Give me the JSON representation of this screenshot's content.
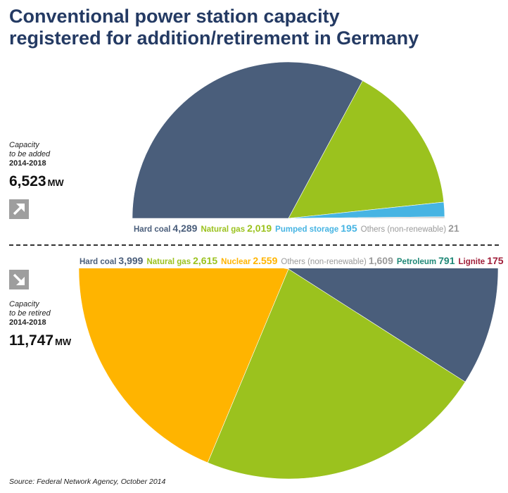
{
  "title_line1": "Conventional power station capacity",
  "title_line2": "registered for addition/retirement in Germany",
  "added": {
    "label1": "Capacity",
    "label2": "to be added",
    "period": "2014-2018",
    "total": "6,523",
    "unit": "MW"
  },
  "retired": {
    "label1": "Capacity",
    "label2": "to be retired",
    "period": "2014-2018",
    "total": "11,747",
    "unit": "MW"
  },
  "source": "Source: Federal Network Agency, October 2014",
  "colors": {
    "hard_coal": "#4a5e7b",
    "natural_gas": "#9bc21e",
    "pumped_storage": "#46b4e3",
    "others": "#cfd1d1",
    "nuclear": "#ffb400",
    "petroleum": "#1f8877",
    "lignite": "#a01e39",
    "title": "#243a63"
  },
  "chart_data": [
    {
      "type": "pie",
      "title": "Capacity to be added 2014-2018",
      "unit": "MW",
      "slices": [
        {
          "key": "hard_coal",
          "label": "Hard coal",
          "value": 4289,
          "display": "4,289"
        },
        {
          "key": "natural_gas",
          "label": "Natural gas",
          "value": 2019,
          "display": "2,019"
        },
        {
          "key": "pumped_storage",
          "label": "Pumped storage",
          "value": 195,
          "display": "195"
        },
        {
          "key": "others",
          "label": "Others (non-renewable)",
          "value": 21,
          "display": "21"
        }
      ]
    },
    {
      "type": "pie",
      "title": "Capacity to be retired 2014-2018",
      "unit": "MW",
      "slices": [
        {
          "key": "hard_coal",
          "label": "Hard coal",
          "value": 3999,
          "display": "3,999"
        },
        {
          "key": "natural_gas",
          "label": "Natural gas",
          "value": 2615,
          "display": "2,615"
        },
        {
          "key": "nuclear",
          "label": "Nuclear",
          "value": 2559,
          "display": "2.559"
        },
        {
          "key": "others",
          "label": "Others (non-renewable)",
          "value": 1609,
          "display": "1,609"
        },
        {
          "key": "petroleum",
          "label": "Petroleum",
          "value": 791,
          "display": "791"
        },
        {
          "key": "lignite",
          "label": "Lignite",
          "value": 175,
          "display": "175"
        }
      ]
    }
  ]
}
